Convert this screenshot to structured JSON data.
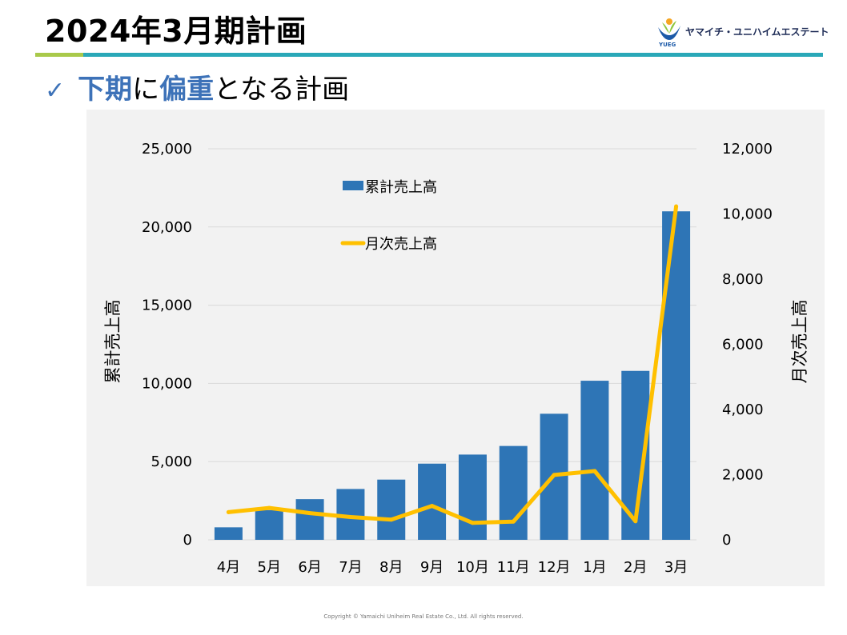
{
  "slide": {
    "title": "2024年3月期計画",
    "subtitle_part1": "下期",
    "subtitle_part2": "に",
    "subtitle_part3": "偏重",
    "subtitle_part4": "となる計画",
    "copyright": "Copyright © Yamaichi Uniheim Real Estate Co., Ltd. All rights reserved."
  },
  "logo": {
    "company_name": "ヤマイチ・ユニハイムエステート",
    "abbreviation": "YUEG"
  },
  "colors": {
    "bar": "#2e75b6",
    "line": "#ffc000",
    "accent": "#3d72b8",
    "rule_green": "#a9c94a",
    "rule_teal": "#2aa8b8",
    "plot_bg": "#f2f2f2"
  },
  "chart_data": {
    "type": "bar+line",
    "categories": [
      "4月",
      "5月",
      "6月",
      "7月",
      "8月",
      "9月",
      "10月",
      "11月",
      "12月",
      "1月",
      "2月",
      "3月"
    ],
    "series": [
      {
        "name": "累計売上高",
        "type": "bar",
        "axis": "left",
        "values": [
          800,
          1900,
          2600,
          3250,
          3850,
          4870,
          5450,
          6000,
          8060,
          10170,
          10800,
          21000
        ]
      },
      {
        "name": "月次売上高",
        "type": "line",
        "axis": "right",
        "values": [
          850,
          980,
          820,
          700,
          620,
          1040,
          520,
          560,
          1990,
          2110,
          570,
          10230
        ]
      }
    ],
    "y_left": {
      "label": "累計売上高",
      "range": [
        0,
        25000
      ],
      "ticks": [
        0,
        5000,
        10000,
        15000,
        20000,
        25000
      ],
      "tick_labels": [
        "0",
        "5,000",
        "10,000",
        "15,000",
        "20,000",
        "25,000"
      ]
    },
    "y_right": {
      "label": "月次売上高",
      "range": [
        0,
        12000
      ],
      "ticks": [
        0,
        2000,
        4000,
        6000,
        8000,
        10000,
        12000
      ],
      "tick_labels": [
        "0",
        "2,000",
        "4,000",
        "6,000",
        "8,000",
        "10,000",
        "12,000"
      ]
    },
    "legend_position": "top-left inside plot",
    "grid": true
  }
}
